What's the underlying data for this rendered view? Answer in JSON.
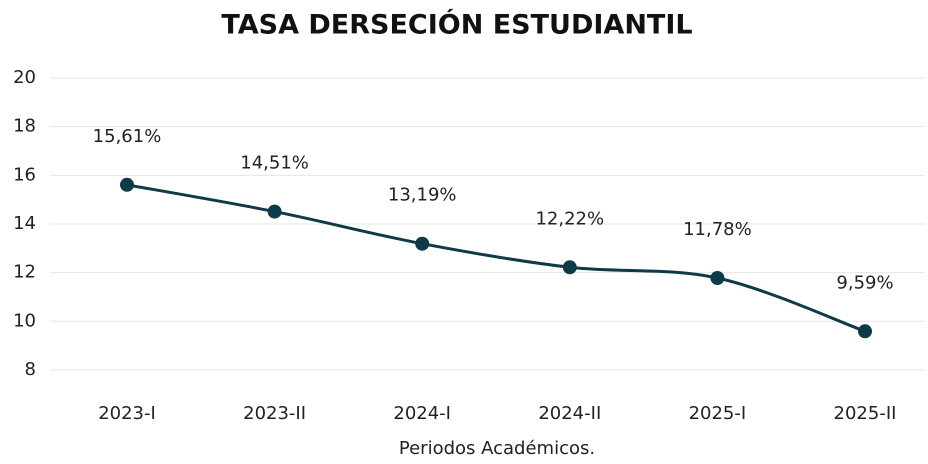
{
  "chart_data": {
    "type": "line",
    "title": "TASA DERSECIÓN ESTUDIANTIL",
    "x_label": "Periodos Académicos.",
    "categories": [
      "2023-I",
      "2023-II",
      "2024-I",
      "2024-II",
      "2025-I",
      "2025-II"
    ],
    "values": [
      15.61,
      14.51,
      13.19,
      12.22,
      11.78,
      9.59
    ],
    "value_labels": [
      "15,61%",
      "14,51%",
      "13,19%",
      "12,22%",
      "11,78%",
      "9,59%"
    ],
    "color": "#0f3a47",
    "ylim": [
      7,
      20
    ],
    "yticks": [
      8,
      10,
      12,
      14,
      16,
      18,
      20
    ],
    "grid": true
  }
}
